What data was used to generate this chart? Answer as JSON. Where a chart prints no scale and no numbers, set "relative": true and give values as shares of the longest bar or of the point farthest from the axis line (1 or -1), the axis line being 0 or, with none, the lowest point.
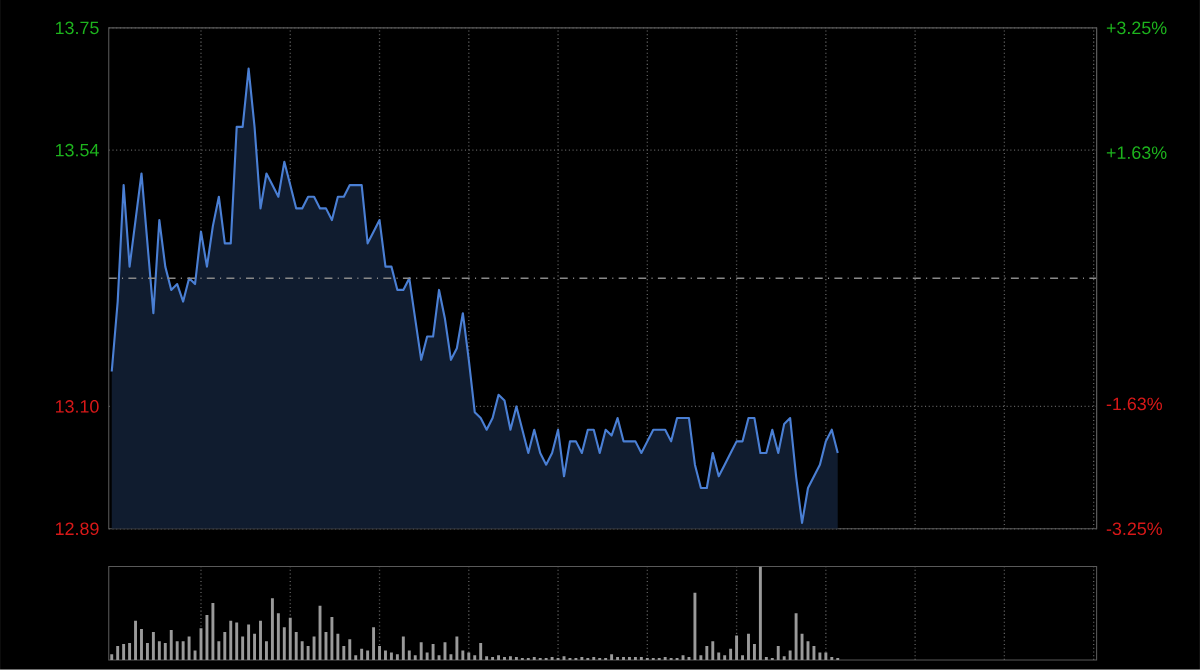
{
  "chart_data": [
    {
      "type": "area",
      "color": "#4a7fd4",
      "categories": [
        null,
        null,
        null,
        null,
        null,
        null,
        null,
        null,
        null,
        null,
        null,
        null,
        null,
        null,
        null,
        null,
        null,
        null,
        null,
        null,
        null,
        null,
        null,
        null,
        null,
        null,
        null,
        null,
        null,
        null,
        null,
        null,
        null,
        null,
        null,
        null,
        null,
        null,
        null,
        null,
        null,
        null,
        null,
        null,
        null,
        null,
        null,
        null,
        null,
        null,
        null,
        null,
        null,
        null,
        null,
        null,
        null,
        null,
        null,
        null,
        null,
        null,
        null,
        null,
        null,
        null,
        null,
        null,
        null,
        null,
        null,
        null,
        null,
        null,
        null,
        null,
        null,
        null,
        null,
        null,
        null,
        null,
        null,
        null,
        null,
        null,
        null,
        null,
        null,
        null,
        null,
        null,
        null,
        null,
        null,
        null,
        null,
        null,
        null,
        null,
        null,
        null,
        null,
        null,
        null,
        null,
        null,
        null,
        null,
        null,
        null,
        null,
        null,
        null,
        null,
        null,
        null,
        null,
        null,
        null,
        null,
        null,
        null,
        null,
        null,
        null,
        null,
        null,
        null,
        null,
        null,
        null,
        null,
        null,
        null,
        null,
        null,
        null,
        null,
        null,
        null,
        null,
        null,
        null,
        null,
        null,
        null,
        null,
        null,
        null,
        null,
        null,
        null,
        null,
        null,
        null,
        null,
        null,
        null,
        null,
        null,
        null,
        null,
        null,
        null,
        null
      ],
      "values": [
        13.16,
        13.28,
        13.48,
        13.34,
        13.42,
        13.5,
        13.38,
        13.26,
        13.42,
        13.34,
        13.3,
        13.31,
        13.28,
        13.32,
        13.31,
        13.4,
        13.34,
        13.41,
        13.46,
        13.38,
        13.38,
        13.58,
        13.58,
        13.68,
        13.58,
        13.44,
        13.5,
        13.48,
        13.46,
        13.52,
        13.48,
        13.44,
        13.44,
        13.46,
        13.46,
        13.44,
        13.44,
        13.42,
        13.46,
        13.46,
        13.48,
        13.48,
        13.48,
        13.38,
        13.4,
        13.42,
        13.34,
        13.34,
        13.3,
        13.3,
        13.32,
        13.25,
        13.18,
        13.22,
        13.22,
        13.3,
        13.25,
        13.18,
        13.2,
        13.26,
        13.18,
        13.09,
        13.08,
        13.06,
        13.08,
        13.12,
        13.11,
        13.06,
        13.1,
        13.06,
        13.02,
        13.06,
        13.02,
        13.0,
        13.02,
        13.06,
        12.98,
        13.04,
        13.04,
        13.02,
        13.06,
        13.06,
        13.02,
        13.06,
        13.05,
        13.08,
        13.04,
        13.04,
        13.04,
        13.02,
        13.04,
        13.06,
        13.06,
        13.06,
        13.04,
        13.08,
        13.08,
        13.08,
        13.0,
        12.96,
        12.96,
        13.02,
        12.98,
        13.0,
        13.02,
        13.04,
        13.04,
        13.08,
        13.08,
        13.02,
        13.02,
        13.06,
        13.02,
        13.07,
        13.08,
        12.98,
        12.9,
        12.96,
        12.98,
        13.0,
        13.04,
        13.06,
        13.02,
        null,
        null,
        null,
        null,
        null,
        null,
        null,
        null,
        null,
        null,
        null,
        null,
        null,
        null,
        null,
        null,
        null,
        null,
        null,
        null,
        null,
        null,
        null,
        null,
        null,
        null,
        null,
        null,
        null,
        null,
        null,
        null,
        null,
        null,
        null,
        null,
        null,
        null,
        null,
        null,
        null,
        null,
        null
      ],
      "ylim": [
        12.89,
        13.75
      ],
      "yticks": [
        12.89,
        {
          "value": 13.1,
          "label": "13.10"
        },
        13.54,
        13.75
      ],
      "y2lim": [
        -3.25,
        3.25
      ],
      "y2ticks": [
        {
          "value": -3.25,
          "label": "-3.25%"
        },
        {
          "value": -1.63,
          "label": "-1.63%"
        },
        {
          "value": 1.63,
          "label": "+1.63%"
        },
        {
          "value": 3.25,
          "label": "+3.25%"
        }
      ],
      "ref_lines": [
        {
          "axis": "y",
          "value": 13.32,
          "line_style": "dashed"
        }
      ],
      "grid": true,
      "tick_labels": "y"
    },
    {
      "type": "bar",
      "color": "#9a9a9a",
      "relative": true,
      "categories": [
        null,
        null,
        null,
        null,
        null,
        null,
        null,
        null,
        null,
        null,
        null,
        null,
        null,
        null,
        null,
        null,
        null,
        null,
        null,
        null,
        null,
        null,
        null,
        null,
        null,
        null,
        null,
        null,
        null,
        null,
        null,
        null,
        null,
        null,
        null,
        null,
        null,
        null,
        null,
        null,
        null,
        null,
        null,
        null,
        null,
        null,
        null,
        null,
        null,
        null,
        null,
        null,
        null,
        null,
        null,
        null,
        null,
        null,
        null,
        null,
        null,
        null,
        null,
        null,
        null,
        null,
        null,
        null,
        null,
        null,
        null,
        null,
        null,
        null,
        null,
        null,
        null,
        null,
        null,
        null,
        null,
        null,
        null,
        null,
        null,
        null,
        null,
        null,
        null,
        null,
        null,
        null,
        null,
        null,
        null,
        null,
        null,
        null,
        null,
        null,
        null,
        null,
        null,
        null,
        null,
        null,
        null,
        null,
        null,
        null,
        null,
        null,
        null,
        null,
        null,
        null,
        null,
        null,
        null,
        null,
        null,
        null,
        null,
        null,
        null,
        null,
        null,
        null,
        null,
        null,
        null,
        null,
        null,
        null,
        null,
        null,
        null,
        null,
        null,
        null,
        null,
        null,
        null,
        null,
        null,
        null,
        null,
        null,
        null,
        null,
        null,
        null,
        null,
        null,
        null,
        null,
        null,
        null,
        null,
        null,
        null,
        null,
        null,
        null,
        null,
        null
      ],
      "values": [
        0.06,
        0.15,
        0.17,
        0.18,
        0.42,
        0.33,
        0.18,
        0.3,
        0.2,
        0.18,
        0.32,
        0.2,
        0.2,
        0.25,
        0.1,
        0.34,
        0.48,
        0.61,
        0.2,
        0.3,
        0.42,
        0.4,
        0.25,
        0.38,
        0.28,
        0.42,
        0.2,
        0.66,
        0.5,
        0.35,
        0.45,
        0.3,
        0.2,
        0.15,
        0.25,
        0.58,
        0.3,
        0.46,
        0.28,
        0.15,
        0.22,
        0.05,
        0.12,
        0.1,
        0.35,
        0.15,
        0.1,
        0.08,
        0.06,
        0.25,
        0.1,
        0.05,
        0.19,
        0.08,
        0.17,
        0.05,
        0.19,
        0.06,
        0.25,
        0.1,
        0.08,
        0.05,
        0.18,
        0.04,
        0.03,
        0.05,
        0.03,
        0.04,
        0.03,
        0.02,
        0.02,
        0.03,
        0.02,
        0.02,
        0.03,
        0.02,
        0.04,
        0.02,
        0.02,
        0.03,
        0.02,
        0.03,
        0.02,
        0.02,
        0.06,
        0.03,
        0.03,
        0.03,
        0.03,
        0.03,
        0.02,
        0.02,
        0.02,
        0.03,
        0.02,
        0.02,
        0.05,
        0.03,
        0.72,
        0.05,
        0.15,
        0.2,
        0.08,
        0.05,
        0.12,
        0.26,
        0.05,
        0.28,
        0.17,
        1.0,
        0.03,
        0.02,
        0.15,
        0.04,
        0.1,
        0.5,
        0.28,
        0.2,
        0.15,
        0.08,
        0.08,
        0.03,
        0.02,
        null,
        null,
        null,
        null,
        null,
        null,
        null,
        null,
        null,
        null,
        null,
        null,
        null,
        null,
        null,
        null,
        null,
        null,
        null,
        null,
        null,
        null,
        null,
        null,
        null,
        null,
        null,
        null,
        null,
        null,
        null,
        null,
        null,
        null,
        null,
        null,
        null,
        null,
        null,
        null,
        null,
        null,
        null
      ],
      "grid": "x",
      "tick_labels": false
    }
  ]
}
